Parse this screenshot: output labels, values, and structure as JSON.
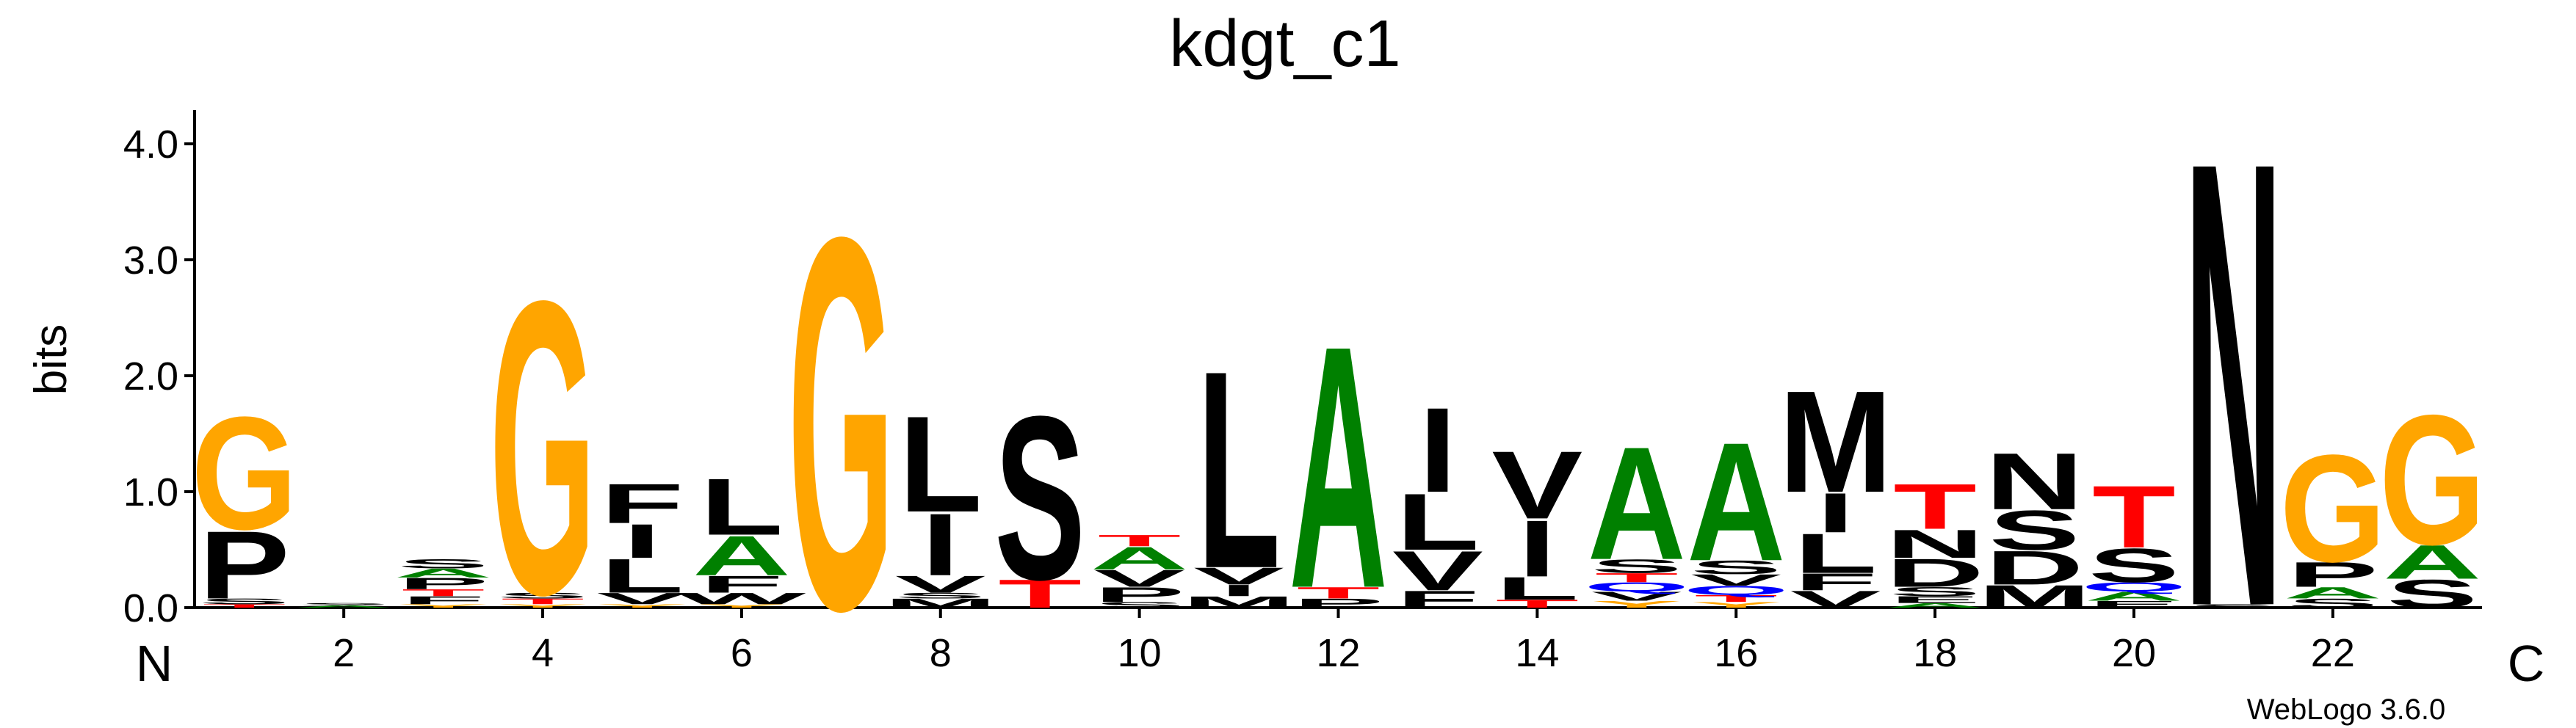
{
  "chart_data": {
    "type": "sequence-logo",
    "title": "kdgt_c1",
    "ylabel": "bits",
    "ylim": [
      0,
      4.3
    ],
    "yticks": [
      "0.0",
      "1.0",
      "2.0",
      "3.0",
      "4.0"
    ],
    "ytick_values": [
      0,
      1,
      2,
      3,
      4
    ],
    "xtick_labels": [
      "2",
      "4",
      "6",
      "8",
      "10",
      "12",
      "14",
      "16",
      "18",
      "20",
      "22"
    ],
    "xtick_positions": [
      2,
      4,
      6,
      8,
      10,
      12,
      14,
      16,
      18,
      20,
      22
    ],
    "n_label": "N",
    "c_label": "C",
    "credit": "WebLogo 3.6.0",
    "colors": {
      "G": "#FFA500",
      "S": "#000000",
      "T": "#FF0000",
      "A": "#008000",
      "P": "#000000",
      "L": "#000000",
      "I": "#000000",
      "V": "#000000",
      "F": "#000000",
      "M": "#000000",
      "W": "#000000",
      "N": "#000000",
      "D": "#000000",
      "E": "#000000",
      "K": "#000000",
      "Q": "#0000FF",
      "C": "#0000FF",
      "Y": "#FFA500"
    },
    "positions": [
      {
        "pos": 1,
        "letters": [
          [
            "T",
            0.03
          ],
          [
            "S",
            0.05
          ],
          [
            "P",
            0.6
          ],
          [
            "G",
            1.0
          ]
        ]
      },
      {
        "pos": 2,
        "letters": [
          [
            "A",
            0.02
          ],
          [
            "S",
            0.02
          ]
        ]
      },
      {
        "pos": 3,
        "letters": [
          [
            "Y",
            0.03
          ],
          [
            "F",
            0.07
          ],
          [
            "T",
            0.06
          ],
          [
            "P",
            0.1
          ],
          [
            "A",
            0.08
          ],
          [
            "S",
            0.08
          ]
        ]
      },
      {
        "pos": 4,
        "letters": [
          [
            "Y",
            0.03
          ],
          [
            "T",
            0.05
          ],
          [
            "S",
            0.05
          ],
          [
            "G",
            2.6
          ]
        ]
      },
      {
        "pos": 5,
        "letters": [
          [
            "Y",
            0.03
          ],
          [
            "V",
            0.1
          ],
          [
            "L",
            0.3
          ],
          [
            "I",
            0.3
          ],
          [
            "F",
            0.35
          ]
        ]
      },
      {
        "pos": 6,
        "letters": [
          [
            "Y",
            0.03
          ],
          [
            "W",
            0.1
          ],
          [
            "F",
            0.15
          ],
          [
            "A",
            0.35
          ],
          [
            "L",
            0.5
          ]
        ]
      },
      {
        "pos": 7,
        "letters": [
          [
            "G",
            3.3
          ]
        ]
      },
      {
        "pos": 8,
        "letters": [
          [
            "M",
            0.08
          ],
          [
            "S",
            0.05
          ],
          [
            "V",
            0.15
          ],
          [
            "I",
            0.55
          ],
          [
            "L",
            0.85
          ]
        ]
      },
      {
        "pos": 9,
        "letters": [
          [
            "T",
            0.25
          ],
          [
            "S",
            1.45
          ]
        ]
      },
      {
        "pos": 10,
        "letters": [
          [
            "S",
            0.05
          ],
          [
            "P",
            0.13
          ],
          [
            "V",
            0.15
          ],
          [
            "A",
            0.2
          ],
          [
            "T",
            0.1
          ]
        ]
      },
      {
        "pos": 11,
        "letters": [
          [
            "M",
            0.1
          ],
          [
            "I",
            0.1
          ],
          [
            "V",
            0.15
          ],
          [
            "L",
            1.75
          ]
        ]
      },
      {
        "pos": 12,
        "letters": [
          [
            "P",
            0.08
          ],
          [
            "T",
            0.1
          ],
          [
            "A",
            2.15
          ]
        ]
      },
      {
        "pos": 13,
        "letters": [
          [
            "F",
            0.15
          ],
          [
            "V",
            0.35
          ],
          [
            "L",
            0.5
          ],
          [
            "I",
            0.75
          ]
        ]
      },
      {
        "pos": 14,
        "letters": [
          [
            "T",
            0.07
          ],
          [
            "L",
            0.2
          ],
          [
            "I",
            0.5
          ],
          [
            "V",
            0.6
          ]
        ]
      },
      {
        "pos": 15,
        "letters": [
          [
            "Y",
            0.06
          ],
          [
            "V",
            0.08
          ],
          [
            "Q",
            0.08
          ],
          [
            "T",
            0.08
          ],
          [
            "S",
            0.12
          ],
          [
            "A",
            1.0
          ]
        ]
      },
      {
        "pos": 16,
        "letters": [
          [
            "Y",
            0.05
          ],
          [
            "T",
            0.06
          ],
          [
            "Q",
            0.08
          ],
          [
            "V",
            0.1
          ],
          [
            "S",
            0.12
          ],
          [
            "A",
            1.05
          ]
        ]
      },
      {
        "pos": 17,
        "letters": [
          [
            "V",
            0.15
          ],
          [
            "F",
            0.15
          ],
          [
            "L",
            0.35
          ],
          [
            "I",
            0.35
          ],
          [
            "M",
            0.9
          ]
        ]
      },
      {
        "pos": 18,
        "letters": [
          [
            "A",
            0.04
          ],
          [
            "E",
            0.06
          ],
          [
            "S",
            0.08
          ],
          [
            "D",
            0.25
          ],
          [
            "N",
            0.25
          ],
          [
            "T",
            0.4
          ]
        ]
      },
      {
        "pos": 19,
        "letters": [
          [
            "M",
            0.2
          ],
          [
            "D",
            0.3
          ],
          [
            "S",
            0.35
          ],
          [
            "N",
            0.5
          ]
        ]
      },
      {
        "pos": 20,
        "letters": [
          [
            "E",
            0.06
          ],
          [
            "A",
            0.08
          ],
          [
            "Q",
            0.08
          ],
          [
            "S",
            0.3
          ],
          [
            "T",
            0.55
          ]
        ]
      },
      {
        "pos": 21,
        "letters": [
          [
            "S",
            0.03
          ],
          [
            "N",
            3.95
          ]
        ]
      },
      {
        "pos": 22,
        "letters": [
          [
            "S",
            0.08
          ],
          [
            "A",
            0.1
          ],
          [
            "P",
            0.22
          ],
          [
            "G",
            0.95
          ]
        ]
      },
      {
        "pos": 23,
        "letters": [
          [
            "S",
            0.25
          ],
          [
            "A",
            0.3
          ],
          [
            "G",
            1.15
          ]
        ]
      }
    ]
  }
}
